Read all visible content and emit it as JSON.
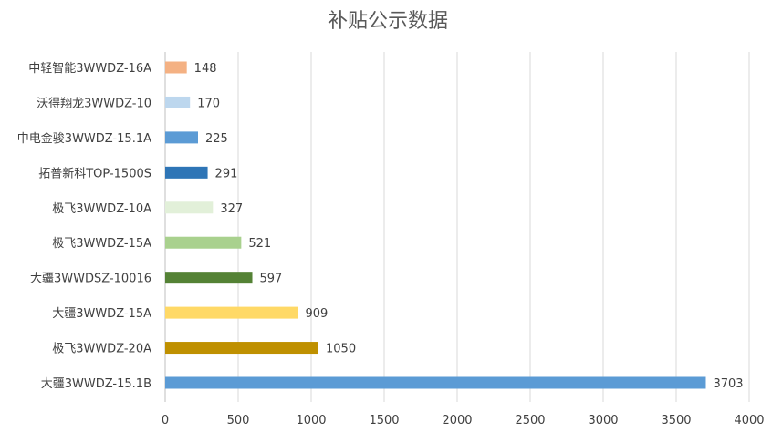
{
  "chart_data": {
    "type": "bar",
    "orientation": "horizontal",
    "title": "补贴公示数据",
    "xlabel": "",
    "ylabel": "",
    "xlim": [
      0,
      4000
    ],
    "xticks": [
      0,
      500,
      1000,
      1500,
      2000,
      2500,
      3000,
      3500,
      4000
    ],
    "grid": "vertical",
    "legend": "none",
    "categories": [
      "中轻智能3WWDZ-16A",
      "沃得翔龙3WWDZ-10",
      "中电金骏3WWDZ-15.1A",
      "拓普新科TOP-1500S",
      "极飞3WWDZ-10A",
      "极飞3WWDZ-15A",
      "大疆3WWDSZ-10016",
      "大疆3WWDZ-15A",
      "极飞3WWDZ-20A",
      "大疆3WWDZ-15.1B"
    ],
    "values": [
      148,
      170,
      225,
      291,
      327,
      521,
      597,
      909,
      1050,
      3703
    ],
    "colors": [
      "#F4B183",
      "#BDD7EE",
      "#5B9BD5",
      "#2E75B6",
      "#E2F0D9",
      "#A9D18E",
      "#548235",
      "#FFD966",
      "#BF9000",
      "#5B9BD5"
    ]
  }
}
